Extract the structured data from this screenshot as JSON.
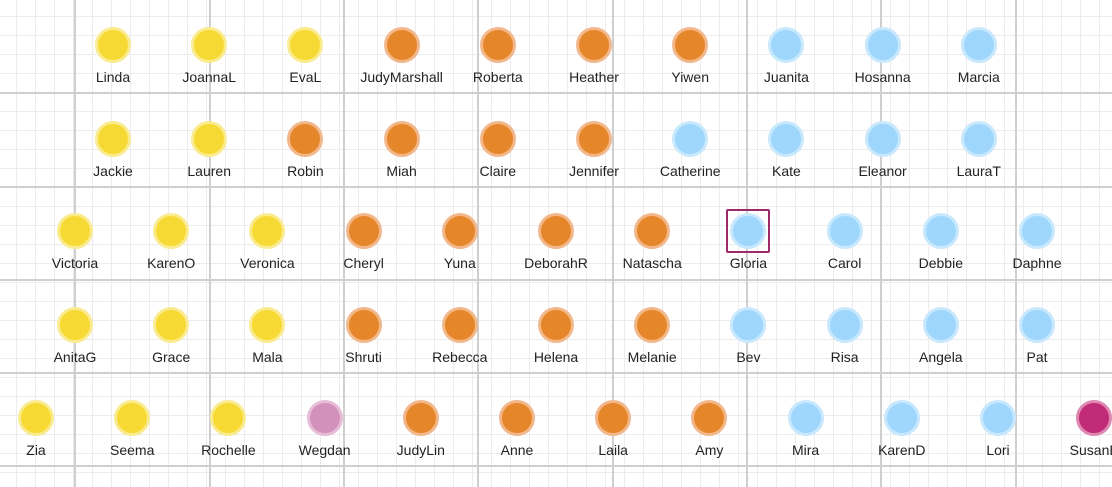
{
  "colors": {
    "yellow": {
      "fill": "#f7d933",
      "ring": "#fbeb8f"
    },
    "orange": {
      "fill": "#e6862a",
      "ring": "#f2b78a"
    },
    "blue": {
      "fill": "#9ed7fb",
      "ring": "#c8e8fd"
    },
    "mauve": {
      "fill": "#d291bb",
      "ring": "#e6bcd6"
    },
    "magenta": {
      "fill": "#c02a76",
      "ring": "#de87b1"
    }
  },
  "selected": "Gloria",
  "rows": [
    [
      {
        "name": "Linda",
        "group": "yellow"
      },
      {
        "name": "JoannaL",
        "group": "yellow"
      },
      {
        "name": "EvaL",
        "group": "yellow"
      },
      {
        "name": "JudyMarshall",
        "group": "orange"
      },
      {
        "name": "Roberta",
        "group": "orange"
      },
      {
        "name": "Heather",
        "group": "orange"
      },
      {
        "name": "Yiwen",
        "group": "orange"
      },
      {
        "name": "Juanita",
        "group": "blue"
      },
      {
        "name": "Hosanna",
        "group": "blue"
      },
      {
        "name": "Marcia",
        "group": "blue"
      }
    ],
    [
      {
        "name": "Jackie",
        "group": "yellow"
      },
      {
        "name": "Lauren",
        "group": "yellow"
      },
      {
        "name": "Robin",
        "group": "orange"
      },
      {
        "name": "Miah",
        "group": "orange"
      },
      {
        "name": "Claire",
        "group": "orange"
      },
      {
        "name": "Jennifer",
        "group": "orange"
      },
      {
        "name": "Catherine",
        "group": "blue"
      },
      {
        "name": "Kate",
        "group": "blue"
      },
      {
        "name": "Eleanor",
        "group": "blue"
      },
      {
        "name": "LauraT",
        "group": "blue"
      }
    ],
    [
      {
        "name": "Victoria",
        "group": "yellow"
      },
      {
        "name": "KarenO",
        "group": "yellow"
      },
      {
        "name": "Veronica",
        "group": "yellow"
      },
      {
        "name": "Cheryl",
        "group": "orange"
      },
      {
        "name": "Yuna",
        "group": "orange"
      },
      {
        "name": "DeborahR",
        "group": "orange"
      },
      {
        "name": "Natascha",
        "group": "orange"
      },
      {
        "name": "Gloria",
        "group": "blue"
      },
      {
        "name": "Carol",
        "group": "blue"
      },
      {
        "name": "Debbie",
        "group": "blue"
      },
      {
        "name": "Daphne",
        "group": "blue"
      }
    ],
    [
      {
        "name": "AnitaG",
        "group": "yellow"
      },
      {
        "name": "Grace",
        "group": "yellow"
      },
      {
        "name": "Mala",
        "group": "yellow"
      },
      {
        "name": "Shruti",
        "group": "orange"
      },
      {
        "name": "Rebecca",
        "group": "orange"
      },
      {
        "name": "Helena",
        "group": "orange"
      },
      {
        "name": "Melanie",
        "group": "orange"
      },
      {
        "name": "Bev",
        "group": "blue"
      },
      {
        "name": "Risa",
        "group": "blue"
      },
      {
        "name": "Angela",
        "group": "blue"
      },
      {
        "name": "Pat",
        "group": "blue"
      }
    ],
    [
      {
        "name": "Zia",
        "group": "yellow"
      },
      {
        "name": "Seema",
        "group": "yellow"
      },
      {
        "name": "Rochelle",
        "group": "yellow"
      },
      {
        "name": "Wegdan",
        "group": "mauve"
      },
      {
        "name": "JudyLin",
        "group": "orange"
      },
      {
        "name": "Anne",
        "group": "orange"
      },
      {
        "name": "Laila",
        "group": "orange"
      },
      {
        "name": "Amy",
        "group": "orange"
      },
      {
        "name": "Mira",
        "group": "blue"
      },
      {
        "name": "KarenD",
        "group": "blue"
      },
      {
        "name": "Lori",
        "group": "blue"
      },
      {
        "name": "SusanB",
        "group": "magenta"
      }
    ]
  ]
}
